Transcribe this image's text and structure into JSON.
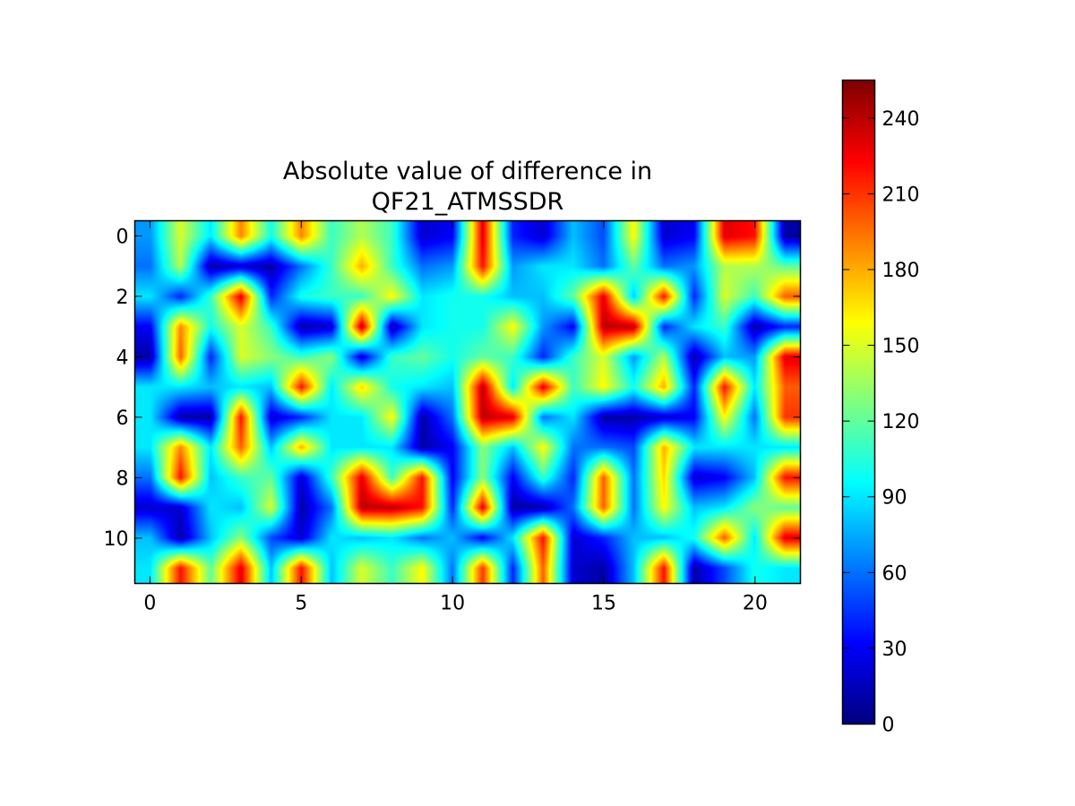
{
  "chart_data": {
    "type": "heatmap",
    "title_lines": [
      "Absolute value of difference in",
      "QF21_ATMSSDR"
    ],
    "xlabel": "",
    "ylabel": "",
    "x_ticks": [
      0,
      5,
      10,
      15,
      20
    ],
    "y_ticks": [
      0,
      2,
      4,
      6,
      8,
      10
    ],
    "xlim": [
      -0.5,
      21.5
    ],
    "ylim": [
      11.5,
      -0.5
    ],
    "colormap": "jet",
    "interpolation": "bilinear",
    "colorbar": {
      "min": 0,
      "max": 255,
      "ticks": [
        0,
        30,
        60,
        90,
        120,
        150,
        180,
        210,
        240
      ],
      "placement": "right"
    },
    "values": [
      [
        70,
        150,
        90,
        190,
        100,
        190,
        110,
        140,
        110,
        20,
        30,
        230,
        40,
        20,
        80,
        50,
        160,
        20,
        30,
        230,
        220,
        10
      ],
      [
        60,
        140,
        10,
        20,
        10,
        60,
        110,
        180,
        110,
        60,
        70,
        220,
        70,
        90,
        90,
        60,
        120,
        60,
        70,
        140,
        140,
        120
      ],
      [
        90,
        40,
        110,
        230,
        40,
        100,
        110,
        110,
        160,
        90,
        100,
        100,
        80,
        80,
        120,
        230,
        80,
        220,
        40,
        150,
        110,
        200
      ],
      [
        30,
        190,
        100,
        150,
        110,
        10,
        20,
        240,
        10,
        90,
        100,
        100,
        160,
        70,
        30,
        240,
        240,
        40,
        90,
        110,
        10,
        40
      ],
      [
        10,
        200,
        40,
        150,
        130,
        110,
        130,
        20,
        110,
        120,
        100,
        120,
        110,
        40,
        110,
        150,
        70,
        140,
        10,
        80,
        70,
        230
      ],
      [
        90,
        90,
        80,
        90,
        80,
        220,
        90,
        170,
        100,
        90,
        80,
        240,
        90,
        230,
        110,
        160,
        100,
        180,
        40,
        220,
        90,
        200
      ],
      [
        90,
        10,
        10,
        220,
        20,
        40,
        90,
        90,
        160,
        10,
        60,
        240,
        230,
        60,
        90,
        10,
        10,
        20,
        30,
        160,
        60,
        210
      ],
      [
        90,
        190,
        90,
        200,
        80,
        180,
        90,
        90,
        90,
        10,
        30,
        130,
        80,
        160,
        60,
        60,
        50,
        180,
        90,
        90,
        90,
        90
      ],
      [
        60,
        220,
        80,
        110,
        120,
        20,
        110,
        230,
        110,
        220,
        30,
        130,
        30,
        110,
        40,
        200,
        60,
        170,
        20,
        30,
        80,
        220
      ],
      [
        20,
        20,
        90,
        80,
        150,
        10,
        60,
        240,
        240,
        220,
        40,
        230,
        10,
        10,
        60,
        200,
        60,
        160,
        80,
        90,
        130,
        120
      ],
      [
        80,
        10,
        80,
        130,
        50,
        20,
        90,
        80,
        90,
        60,
        80,
        30,
        90,
        220,
        20,
        40,
        80,
        80,
        100,
        200,
        90,
        230
      ],
      [
        90,
        220,
        120,
        230,
        80,
        220,
        80,
        150,
        110,
        160,
        60,
        210,
        40,
        200,
        20,
        10,
        80,
        220,
        10,
        50,
        100,
        90
      ]
    ]
  }
}
